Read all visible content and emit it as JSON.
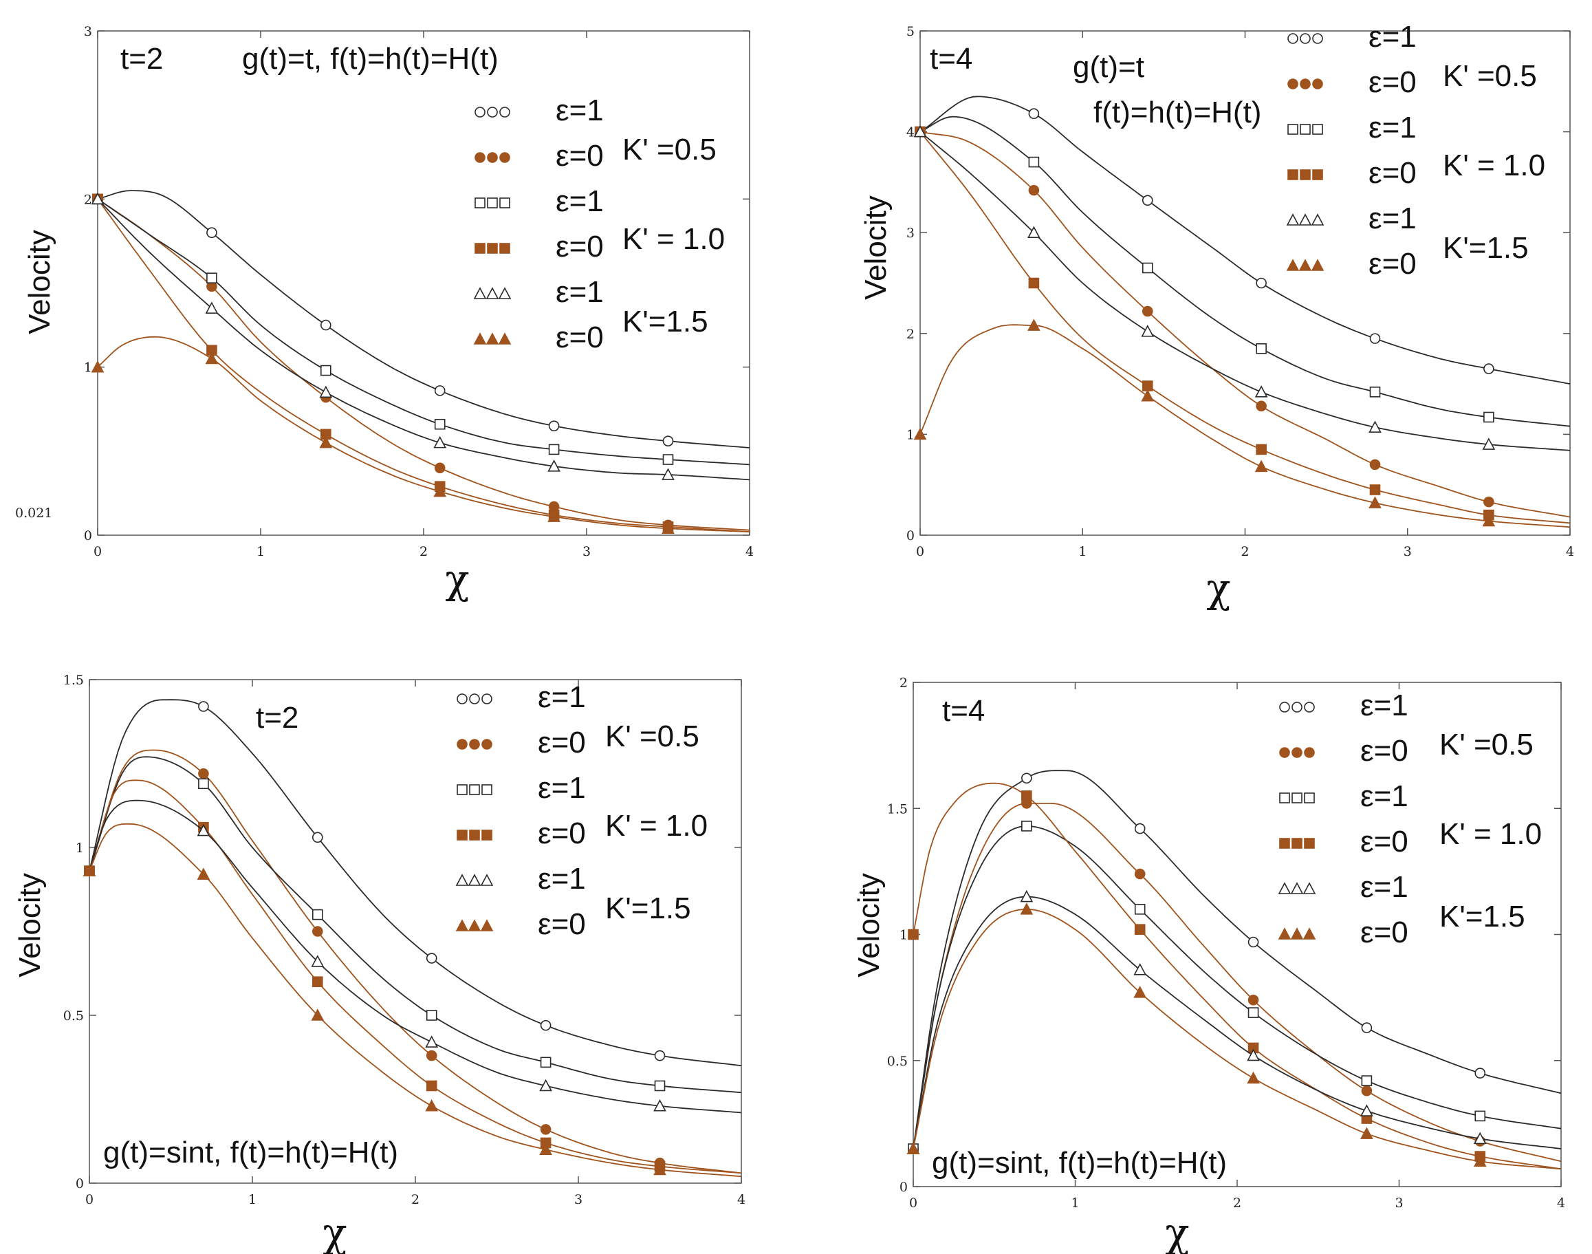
{
  "colors": {
    "black": "#2b2b2b",
    "brown": "#a0531c",
    "axis": "#555555"
  },
  "legend": {
    "entries": [
      {
        "eps": "ε=1",
        "series": 0,
        "marker": "circle-open",
        "color": "black"
      },
      {
        "eps": "ε=0",
        "series": 1,
        "marker": "circle-filled",
        "color": "brown"
      },
      {
        "eps": "ε=1",
        "series": 2,
        "marker": "square-open",
        "color": "black"
      },
      {
        "eps": "ε=0",
        "series": 3,
        "marker": "square-filled",
        "color": "brown"
      },
      {
        "eps": "ε=1",
        "series": 4,
        "marker": "triangle-open",
        "color": "black"
      },
      {
        "eps": "ε=0",
        "series": 5,
        "marker": "triangle-filled",
        "color": "brown"
      }
    ],
    "k_labels": [
      "K' =0.5",
      "K' = 1.0",
      "K'=1.5"
    ]
  },
  "chart_data": [
    {
      "type": "line",
      "panel": "top-left",
      "time_label": "t=2",
      "case_label": "g(t)=t, f(t)=h(t)=H(t)",
      "xlabel": "χ",
      "ylabel": "Velocity",
      "xlim": [
        0,
        4
      ],
      "ylim": [
        0,
        3
      ],
      "xticks": [
        "0",
        "1",
        "2",
        "3",
        "4"
      ],
      "yticks": [
        "0",
        "1",
        "2",
        "3"
      ],
      "extra_label": "0.021",
      "marker_x": [
        0.7,
        1.4,
        2.1,
        2.8,
        3.5
      ],
      "series": [
        {
          "name": "ε=1, K'=0.5",
          "x": [
            0,
            0.2,
            0.4,
            0.7,
            1.0,
            1.4,
            1.8,
            2.1,
            2.5,
            2.8,
            3.2,
            3.5,
            4.0
          ],
          "y": [
            2.0,
            2.05,
            2.02,
            1.8,
            1.55,
            1.25,
            1.0,
            0.86,
            0.72,
            0.65,
            0.59,
            0.56,
            0.52
          ]
        },
        {
          "name": "ε=0, K'=0.5",
          "x": [
            0,
            0.3,
            0.7,
            1.0,
            1.4,
            1.8,
            2.1,
            2.5,
            2.8,
            3.2,
            3.5,
            4.0
          ],
          "y": [
            2.0,
            1.8,
            1.48,
            1.15,
            0.82,
            0.55,
            0.4,
            0.25,
            0.17,
            0.09,
            0.06,
            0.03
          ]
        },
        {
          "name": "ε=1, K'=1.0",
          "x": [
            0,
            0.3,
            0.7,
            1.0,
            1.4,
            1.8,
            2.1,
            2.5,
            2.8,
            3.2,
            3.5,
            4.0
          ],
          "y": [
            2.0,
            1.8,
            1.53,
            1.25,
            0.98,
            0.78,
            0.66,
            0.55,
            0.51,
            0.47,
            0.45,
            0.42
          ]
        },
        {
          "name": "ε=0, K'=1.0",
          "x": [
            0,
            0.3,
            0.7,
            1.0,
            1.4,
            1.8,
            2.1,
            2.5,
            2.8,
            3.2,
            3.5,
            4.0
          ],
          "y": [
            2.0,
            1.6,
            1.1,
            0.85,
            0.6,
            0.4,
            0.29,
            0.18,
            0.12,
            0.07,
            0.05,
            0.02
          ]
        },
        {
          "name": "ε=1, K'=1.5",
          "x": [
            0,
            0.3,
            0.7,
            1.0,
            1.4,
            1.8,
            2.1,
            2.5,
            2.8,
            3.2,
            3.5,
            4.0
          ],
          "y": [
            2.0,
            1.7,
            1.35,
            1.1,
            0.85,
            0.66,
            0.55,
            0.46,
            0.41,
            0.37,
            0.36,
            0.33
          ]
        },
        {
          "name": "ε=0, K'=1.5",
          "x": [
            0,
            0.15,
            0.35,
            0.7,
            1.0,
            1.4,
            1.8,
            2.1,
            2.5,
            2.8,
            3.2,
            3.5,
            4.0
          ],
          "y": [
            1.0,
            1.13,
            1.18,
            1.05,
            0.8,
            0.55,
            0.36,
            0.26,
            0.16,
            0.11,
            0.06,
            0.04,
            0.02
          ]
        }
      ]
    },
    {
      "type": "line",
      "panel": "top-right",
      "time_label": "t=4",
      "case_label": "g(t)=t",
      "case_label2": "f(t)=h(t)=H(t)",
      "xlabel": "χ",
      "ylabel": "Velocity",
      "xlim": [
        0,
        4
      ],
      "ylim": [
        0,
        5
      ],
      "xticks": [
        "0",
        "1",
        "2",
        "3",
        "4"
      ],
      "yticks": [
        "0",
        "1",
        "2",
        "3",
        "4",
        "5"
      ],
      "marker_x": [
        0.7,
        1.4,
        2.1,
        2.8,
        3.5
      ],
      "series": [
        {
          "name": "ε=1, K'=0.5",
          "x": [
            0,
            0.35,
            0.7,
            1.0,
            1.4,
            1.8,
            2.1,
            2.5,
            2.8,
            3.2,
            3.5,
            4.0
          ],
          "y": [
            4.0,
            4.35,
            4.18,
            3.8,
            3.32,
            2.85,
            2.5,
            2.15,
            1.95,
            1.75,
            1.65,
            1.5
          ]
        },
        {
          "name": "ε=0, K'=0.5",
          "x": [
            0,
            0.3,
            0.7,
            1.0,
            1.4,
            1.8,
            2.1,
            2.5,
            2.8,
            3.2,
            3.5,
            4.0
          ],
          "y": [
            4.0,
            3.9,
            3.42,
            2.85,
            2.22,
            1.65,
            1.28,
            0.95,
            0.7,
            0.48,
            0.33,
            0.18
          ]
        },
        {
          "name": "ε=1, K'=1.0",
          "x": [
            0,
            0.2,
            0.7,
            1.0,
            1.4,
            1.8,
            2.1,
            2.5,
            2.8,
            3.2,
            3.5,
            4.0
          ],
          "y": [
            4.0,
            4.15,
            3.7,
            3.2,
            2.65,
            2.15,
            1.85,
            1.55,
            1.42,
            1.25,
            1.17,
            1.08
          ]
        },
        {
          "name": "ε=0, K'=1.0",
          "x": [
            0,
            0.3,
            0.7,
            1.0,
            1.4,
            1.8,
            2.1,
            2.5,
            2.8,
            3.2,
            3.5,
            4.0
          ],
          "y": [
            4.0,
            3.4,
            2.5,
            1.95,
            1.48,
            1.08,
            0.85,
            0.6,
            0.45,
            0.3,
            0.2,
            0.12
          ]
        },
        {
          "name": "ε=1, K'=1.5",
          "x": [
            0,
            0.3,
            0.7,
            1.0,
            1.4,
            1.8,
            2.1,
            2.5,
            2.8,
            3.2,
            3.5,
            4.0
          ],
          "y": [
            4.0,
            3.6,
            3.0,
            2.5,
            2.02,
            1.65,
            1.42,
            1.2,
            1.07,
            0.96,
            0.9,
            0.84
          ]
        },
        {
          "name": "ε=0, K'=1.5",
          "x": [
            0,
            0.2,
            0.45,
            0.7,
            1.0,
            1.4,
            1.8,
            2.1,
            2.5,
            2.8,
            3.2,
            3.5,
            4.0
          ],
          "y": [
            1.0,
            1.75,
            2.05,
            2.08,
            1.85,
            1.38,
            0.95,
            0.68,
            0.45,
            0.32,
            0.2,
            0.14,
            0.08
          ]
        }
      ]
    },
    {
      "type": "line",
      "panel": "bottom-left",
      "time_label": "t=2",
      "case_label": "g(t)=sint, f(t)=h(t)=H(t)",
      "xlabel": "χ",
      "ylabel": "Velocity",
      "xlim": [
        0,
        4
      ],
      "ylim": [
        0,
        1.5
      ],
      "xticks": [
        "0",
        "1",
        "2",
        "3",
        "4"
      ],
      "yticks": [
        "0",
        "0.5",
        "1",
        "1.5"
      ],
      "marker_x": [
        0.7,
        1.4,
        2.1,
        2.8,
        3.5
      ],
      "series": [
        {
          "name": "ε=1, K'=0.5",
          "x": [
            0,
            0.2,
            0.45,
            0.7,
            1.0,
            1.4,
            1.8,
            2.1,
            2.5,
            2.8,
            3.2,
            3.5,
            4.0
          ],
          "y": [
            0.93,
            1.32,
            1.44,
            1.42,
            1.28,
            1.03,
            0.8,
            0.67,
            0.54,
            0.47,
            0.41,
            0.38,
            0.35
          ]
        },
        {
          "name": "ε=0, K'=0.5",
          "x": [
            0,
            0.2,
            0.4,
            0.7,
            1.0,
            1.4,
            1.8,
            2.1,
            2.5,
            2.8,
            3.2,
            3.5,
            4.0
          ],
          "y": [
            0.93,
            1.23,
            1.29,
            1.22,
            1.02,
            0.75,
            0.52,
            0.38,
            0.24,
            0.16,
            0.09,
            0.06,
            0.03
          ]
        },
        {
          "name": "ε=1, K'=1.0",
          "x": [
            0,
            0.2,
            0.35,
            0.7,
            1.0,
            1.4,
            1.8,
            2.1,
            2.5,
            2.8,
            3.2,
            3.5,
            4.0
          ],
          "y": [
            0.93,
            1.22,
            1.27,
            1.19,
            1.0,
            0.8,
            0.61,
            0.5,
            0.4,
            0.36,
            0.31,
            0.29,
            0.27
          ]
        },
        {
          "name": "ε=0, K'=1.0",
          "x": [
            0,
            0.15,
            0.3,
            0.7,
            1.0,
            1.4,
            1.8,
            2.1,
            2.5,
            2.8,
            3.2,
            3.5,
            4.0
          ],
          "y": [
            0.93,
            1.16,
            1.2,
            1.06,
            0.86,
            0.6,
            0.41,
            0.29,
            0.18,
            0.12,
            0.07,
            0.05,
            0.03
          ]
        },
        {
          "name": "ε=1, K'=1.5",
          "x": [
            0,
            0.1,
            0.3,
            0.7,
            1.0,
            1.4,
            1.8,
            2.1,
            2.5,
            2.8,
            3.2,
            3.5,
            4.0
          ],
          "y": [
            0.93,
            1.08,
            1.14,
            1.05,
            0.88,
            0.66,
            0.5,
            0.42,
            0.33,
            0.29,
            0.25,
            0.23,
            0.21
          ]
        },
        {
          "name": "ε=0, K'=1.5",
          "x": [
            0,
            0.1,
            0.25,
            0.7,
            1.0,
            1.4,
            1.8,
            2.1,
            2.5,
            2.8,
            3.2,
            3.5,
            4.0
          ],
          "y": [
            0.93,
            1.04,
            1.07,
            0.92,
            0.73,
            0.5,
            0.33,
            0.23,
            0.14,
            0.1,
            0.06,
            0.04,
            0.02
          ]
        }
      ]
    },
    {
      "type": "line",
      "panel": "bottom-right",
      "time_label": "t=4",
      "case_label": "g(t)=sint, f(t)=h(t)=H(t)",
      "xlabel": "χ",
      "ylabel": "Velocity",
      "xlim": [
        0,
        4
      ],
      "ylim": [
        0,
        2
      ],
      "xticks": [
        "0",
        "1",
        "2",
        "3",
        "4"
      ],
      "yticks": [
        "0",
        "0.5",
        "1",
        "1.5",
        "2"
      ],
      "marker_x": [
        0.7,
        1.4,
        2.1,
        2.8,
        3.5
      ],
      "series": [
        {
          "name": "ε=1, K'=0.5",
          "x": [
            0,
            0.15,
            0.4,
            0.7,
            0.95,
            1.4,
            1.8,
            2.1,
            2.5,
            2.8,
            3.2,
            3.5,
            4.0
          ],
          "y": [
            0.15,
            0.8,
            1.4,
            1.62,
            1.65,
            1.42,
            1.15,
            0.97,
            0.77,
            0.63,
            0.52,
            0.45,
            0.37
          ]
        },
        {
          "name": "ε=0, K'=0.5",
          "x": [
            0,
            0.15,
            0.4,
            0.7,
            0.85,
            1.4,
            1.8,
            2.1,
            2.5,
            2.8,
            3.2,
            3.5,
            4.0
          ],
          "y": [
            0.15,
            0.75,
            1.3,
            1.52,
            1.52,
            1.24,
            0.95,
            0.74,
            0.52,
            0.38,
            0.25,
            0.18,
            0.1
          ]
        },
        {
          "name": "ε=1, K'=1.0",
          "x": [
            0,
            0.15,
            0.4,
            0.7,
            1.0,
            1.4,
            1.8,
            2.1,
            2.5,
            2.8,
            3.2,
            3.5,
            4.0
          ],
          "y": [
            0.15,
            0.75,
            1.25,
            1.43,
            1.35,
            1.1,
            0.85,
            0.69,
            0.52,
            0.42,
            0.33,
            0.28,
            0.23
          ]
        },
        {
          "name": "ε=0, K'=1.0",
          "x": [
            0,
            0.1,
            0.25,
            0.5,
            0.7,
            1.0,
            1.4,
            1.8,
            2.1,
            2.5,
            2.8,
            3.2,
            3.5,
            4.0
          ],
          "y": [
            1.0,
            1.33,
            1.52,
            1.6,
            1.55,
            1.33,
            1.02,
            0.74,
            0.55,
            0.38,
            0.27,
            0.17,
            0.12,
            0.07
          ]
        },
        {
          "name": "ε=1, K'=1.5",
          "x": [
            0,
            0.15,
            0.4,
            0.7,
            1.0,
            1.4,
            1.8,
            2.1,
            2.5,
            2.8,
            3.2,
            3.5,
            4.0
          ],
          "y": [
            0.15,
            0.65,
            1.02,
            1.15,
            1.08,
            0.86,
            0.66,
            0.52,
            0.38,
            0.3,
            0.23,
            0.19,
            0.15
          ]
        },
        {
          "name": "ε=0, K'=1.5",
          "x": [
            0,
            0.15,
            0.4,
            0.7,
            1.0,
            1.4,
            1.8,
            2.1,
            2.5,
            2.8,
            3.2,
            3.5,
            4.0
          ],
          "y": [
            0.15,
            0.62,
            0.98,
            1.1,
            1.02,
            0.77,
            0.56,
            0.43,
            0.3,
            0.21,
            0.14,
            0.1,
            0.07
          ]
        }
      ]
    }
  ]
}
